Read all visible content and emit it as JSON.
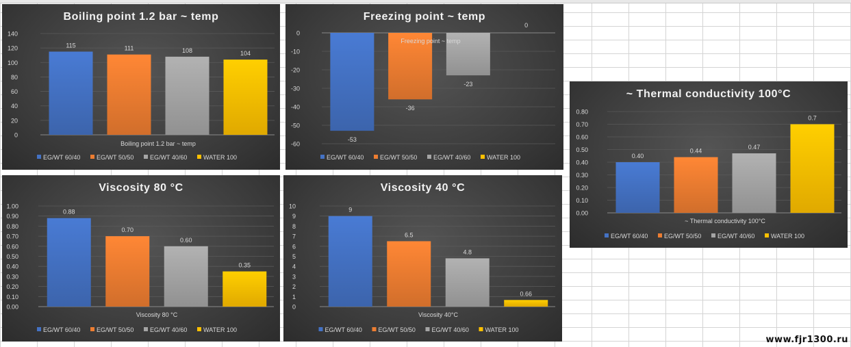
{
  "series_colors": [
    "#4472c4",
    "#ed7d31",
    "#a5a5a5",
    "#ffc000"
  ],
  "legend": [
    "EG/WT 60/40",
    "EG/WT 50/50",
    "EG/WT 40/60",
    "WATER 100"
  ],
  "watermark": "www.fjr1300.ru",
  "chart_data": [
    {
      "id": "boiling",
      "type": "bar",
      "title": "Boiling point 1.2 bar ~ temp",
      "xlabel": "Boiling point 1.2 bar ~ temp",
      "series": [
        "EG/WT 60/40",
        "EG/WT 50/50",
        "EG/WT 40/60",
        "WATER 100"
      ],
      "values": [
        115,
        111,
        108,
        104
      ],
      "value_labels": [
        "115",
        "111",
        "108",
        "104"
      ],
      "ylim": [
        0,
        140
      ],
      "ticks": [
        "0",
        "20",
        "40",
        "60",
        "80",
        "100",
        "120",
        "140"
      ],
      "grid": true,
      "legend_position": "bottom"
    },
    {
      "id": "freezing",
      "type": "bar",
      "title": "Freezing point ~ temp",
      "xlabel": "Freezing point ~ temp",
      "series": [
        "EG/WT 60/40",
        "EG/WT 50/50",
        "EG/WT 40/60",
        "WATER 100"
      ],
      "values": [
        -53,
        -36,
        -23,
        0
      ],
      "value_labels": [
        "-53",
        "-36",
        "-23",
        "0"
      ],
      "ylim": [
        -60,
        0
      ],
      "ticks": [
        "-60",
        "-50",
        "-40",
        "-30",
        "-20",
        "-10",
        "0"
      ],
      "grid": true,
      "legend_position": "bottom"
    },
    {
      "id": "thermal",
      "type": "bar",
      "title": "~ Thermal conductivity 100°C",
      "xlabel": "~ Thermal conductivity   100°C",
      "series": [
        "EG/WT 60/40",
        "EG/WT 50/50",
        "EG/WT 40/60",
        "WATER 100"
      ],
      "values": [
        0.4,
        0.44,
        0.47,
        0.7
      ],
      "value_labels": [
        "0.40",
        "0.44",
        "0.47",
        "0.7"
      ],
      "ylim": [
        0,
        0.8
      ],
      "ticks": [
        "0.00",
        "0.10",
        "0.20",
        "0.30",
        "0.40",
        "0.50",
        "0.60",
        "0.70",
        "0.80"
      ],
      "grid": true,
      "legend_position": "bottom"
    },
    {
      "id": "visc80",
      "type": "bar",
      "title": "Viscosity   80 °C",
      "xlabel": "Viscosity   80 °C",
      "series": [
        "EG/WT 60/40",
        "EG/WT 50/50",
        "EG/WT 40/60",
        "WATER 100"
      ],
      "values": [
        0.88,
        0.7,
        0.6,
        0.35
      ],
      "value_labels": [
        "0.88",
        "0.70",
        "0.60",
        "0.35"
      ],
      "ylim": [
        0,
        1.0
      ],
      "ticks": [
        "0.00",
        "0.10",
        "0.20",
        "0.30",
        "0.40",
        "0.50",
        "0.60",
        "0.70",
        "0.80",
        "0.90",
        "1.00"
      ],
      "grid": true,
      "legend_position": "bottom"
    },
    {
      "id": "visc40",
      "type": "bar",
      "title": "Viscosity 40 °C",
      "xlabel": "Viscosity   40°C",
      "series": [
        "EG/WT 60/40",
        "EG/WT 50/50",
        "EG/WT 40/60",
        "WATER 100"
      ],
      "values": [
        9,
        6.5,
        4.8,
        0.66
      ],
      "value_labels": [
        "9",
        "6.5",
        "4.8",
        "0.66"
      ],
      "ylim": [
        0,
        10
      ],
      "ticks": [
        "0",
        "1",
        "2",
        "3",
        "4",
        "5",
        "6",
        "7",
        "8",
        "9",
        "10"
      ],
      "grid": true,
      "legend_position": "bottom"
    }
  ]
}
